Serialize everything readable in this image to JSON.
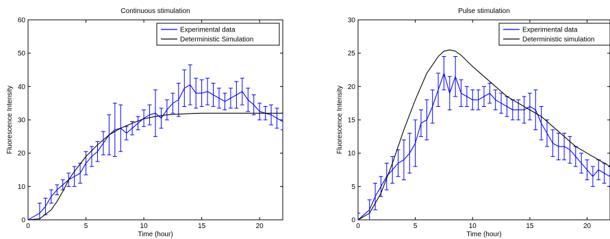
{
  "chart_data": [
    {
      "type": "line",
      "title": "Continuous stimulation",
      "xlabel": "Time (hour)",
      "ylabel": "Fluorescence Intensity",
      "xlim": [
        0,
        22
      ],
      "ylim": [
        0,
        60
      ],
      "xticks": [
        0,
        5,
        10,
        15,
        20
      ],
      "yticks": [
        0,
        10,
        20,
        30,
        40,
        50,
        60
      ],
      "grid": false,
      "legend": "top-right",
      "series": [
        {
          "name": "Experimental data",
          "color": "#0000ff",
          "style": "line-with-errorbars",
          "x": [
            0,
            1,
            1.5,
            2,
            2.5,
            3,
            3.5,
            4,
            4.5,
            5,
            5.5,
            6,
            6.5,
            7,
            7.5,
            8,
            8.5,
            9,
            9.5,
            10,
            10.5,
            11,
            11.5,
            12,
            12.5,
            13,
            13.5,
            14,
            14.5,
            15,
            15.5,
            16,
            16.5,
            17,
            17.5,
            18,
            18.5,
            19,
            19.5,
            20,
            20.5,
            21,
            21.5,
            22
          ],
          "y": [
            0,
            2,
            4,
            7,
            9,
            10.5,
            12,
            13,
            14,
            17,
            19,
            20.5,
            23,
            25.5,
            27,
            27.5,
            26,
            27.5,
            29,
            30.5,
            31.5,
            32,
            30.5,
            33,
            35,
            36,
            39.5,
            40.5,
            38,
            38,
            38.5,
            37.5,
            36.5,
            35.5,
            36.5,
            37.5,
            38.5,
            36,
            34.5,
            32.5,
            32,
            31.5,
            30.5,
            29.5
          ],
          "error": [
            0,
            3,
            2.5,
            2,
            1.5,
            1.5,
            2,
            3,
            3,
            3.5,
            3,
            3,
            3.5,
            6,
            8,
            7,
            2,
            2,
            2,
            2.5,
            3,
            7,
            3,
            3,
            3,
            5,
            5.5,
            6,
            4.5,
            4,
            4,
            3.5,
            3,
            2.5,
            3,
            4,
            4,
            3.5,
            3,
            2.5,
            2,
            3,
            3,
            2.5
          ]
        },
        {
          "name": "Deterministic Simulation",
          "color": "#000000",
          "style": "line",
          "x": [
            0,
            1,
            2,
            2.5,
            3,
            3.5,
            4,
            5,
            6,
            7,
            8,
            9,
            10,
            11,
            12,
            13,
            14,
            15,
            16,
            17,
            18,
            19,
            20,
            21,
            22
          ],
          "y": [
            0,
            0.3,
            3,
            5.5,
            8.5,
            12,
            14.5,
            19,
            22.5,
            25.5,
            27.5,
            29,
            30.3,
            31,
            31.5,
            31.7,
            31.9,
            32,
            32,
            32,
            32,
            32,
            32,
            32,
            32
          ]
        }
      ]
    },
    {
      "type": "line",
      "title": "Pulse stimulation",
      "xlabel": "Time (hour)",
      "ylabel": "Fluorescence Intensity",
      "xlim": [
        0,
        22
      ],
      "ylim": [
        0,
        30
      ],
      "xticks": [
        0,
        5,
        10,
        15,
        20
      ],
      "yticks": [
        0,
        5,
        10,
        15,
        20,
        25,
        30
      ],
      "grid": false,
      "legend": "top-right",
      "series": [
        {
          "name": "Experimental data",
          "color": "#0000ff",
          "style": "line-with-errorbars",
          "x": [
            0,
            1,
            1.5,
            2,
            2.5,
            3,
            3.5,
            4,
            4.5,
            5,
            5.5,
            6,
            6.5,
            7,
            7.5,
            8,
            8.5,
            9,
            9.5,
            10,
            10.5,
            11,
            11.5,
            12,
            12.5,
            13,
            13.5,
            14,
            14.5,
            15,
            15.5,
            16,
            16.5,
            17,
            17.5,
            18,
            18.5,
            19,
            19.5,
            20,
            20.5,
            21,
            21.5,
            22
          ],
          "y": [
            0,
            1.5,
            3.5,
            5,
            6.5,
            7.5,
            8.5,
            9,
            10,
            11.5,
            14.5,
            15,
            17,
            19.5,
            22,
            19,
            21.5,
            19,
            18.5,
            18,
            18,
            18.5,
            19,
            18,
            17.5,
            17,
            16.5,
            16.5,
            16.5,
            17,
            16.5,
            14.5,
            13,
            11.5,
            11,
            11,
            10.5,
            9.5,
            8.5,
            7.5,
            6.5,
            7.5,
            7,
            6.5
          ],
          "error": [
            1,
            1.5,
            2,
            1.5,
            2,
            2,
            2,
            3,
            3,
            3.5,
            2,
            3,
            2.5,
            2.5,
            2.5,
            2.5,
            3,
            2,
            1.5,
            1.5,
            1.5,
            1.5,
            1.5,
            1.5,
            1.5,
            1.5,
            1.5,
            1.5,
            2,
            2,
            3,
            2.5,
            2,
            2,
            2,
            2,
            2,
            1.5,
            1.5,
            1.5,
            1.5,
            1.5,
            1.5,
            1.5
          ]
        },
        {
          "name": "Deterministic simulation",
          "color": "#000000",
          "style": "line",
          "x": [
            0,
            1,
            2,
            3,
            4,
            5,
            6,
            7,
            7.5,
            8,
            8.5,
            9,
            10,
            11,
            12,
            13,
            14,
            15,
            16,
            17,
            18,
            19,
            20,
            21,
            22
          ],
          "y": [
            0,
            1,
            4,
            8.5,
            13.5,
            18,
            22,
            24.5,
            25.3,
            25.5,
            25.3,
            24.7,
            23,
            21.5,
            20,
            18.5,
            17.5,
            16.5,
            15.5,
            14,
            12.5,
            11,
            10,
            9,
            8
          ]
        }
      ]
    }
  ]
}
